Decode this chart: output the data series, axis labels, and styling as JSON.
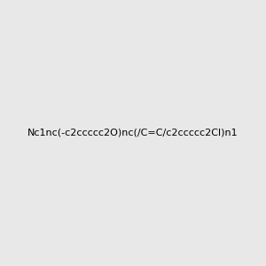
{
  "smiles": "Nc1nc(-c2ccccc2O)nc(/C=C/c2ccccc2Cl)n1",
  "image_size": 300,
  "background_color": "#e8e8e8",
  "atom_colors": {
    "N": "#0000ff",
    "O": "#ff0000",
    "Cl": "#00cc00",
    "C": "#2d6e6e",
    "H": "#2d6e6e"
  },
  "title": "",
  "bond_color": "#2d6e6e"
}
